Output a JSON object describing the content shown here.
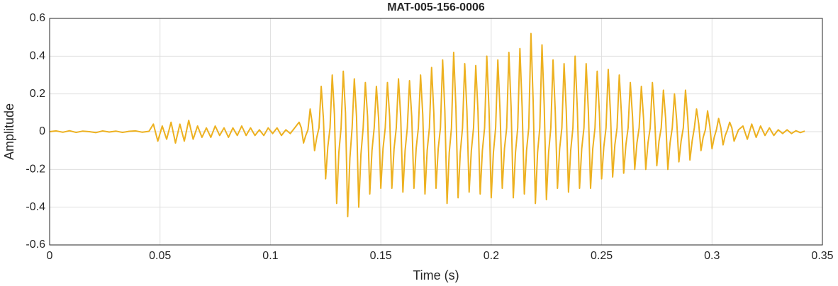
{
  "chart_data": {
    "type": "line",
    "title": "MAT-005-156-0006",
    "x_label": "Time (s)",
    "y_label": "Amplitude",
    "color": "#EDB120",
    "grid": true,
    "xlim": [
      0,
      0.35
    ],
    "ylim": [
      -0.6,
      0.6
    ],
    "xticks": [
      0,
      0.05,
      0.1,
      0.15,
      0.2,
      0.25,
      0.3,
      0.35
    ],
    "yticks": [
      -0.6,
      -0.4,
      -0.2,
      0,
      0.2,
      0.4,
      0.6
    ],
    "x": [
      0,
      0.003,
      0.006,
      0.009,
      0.012,
      0.015,
      0.018,
      0.021,
      0.024,
      0.027,
      0.03,
      0.033,
      0.036,
      0.039,
      0.042,
      0.045,
      0.047,
      0.049,
      0.051,
      0.053,
      0.055,
      0.057,
      0.059,
      0.061,
      0.063,
      0.065,
      0.067,
      0.069,
      0.071,
      0.073,
      0.075,
      0.077,
      0.079,
      0.081,
      0.083,
      0.085,
      0.087,
      0.089,
      0.091,
      0.093,
      0.095,
      0.097,
      0.099,
      0.101,
      0.103,
      0.105,
      0.107,
      0.109,
      0.111,
      0.113,
      0.114,
      0.115,
      0.116,
      0.117,
      0.118,
      0.119,
      0.12,
      0.121,
      0.122,
      0.123,
      0.124,
      0.125,
      0.126,
      0.127,
      0.128,
      0.129,
      0.13,
      0.131,
      0.132,
      0.133,
      0.134,
      0.135,
      0.136,
      0.137,
      0.138,
      0.139,
      0.14,
      0.141,
      0.142,
      0.143,
      0.144,
      0.145,
      0.146,
      0.147,
      0.148,
      0.149,
      0.15,
      0.151,
      0.152,
      0.153,
      0.154,
      0.155,
      0.156,
      0.157,
      0.158,
      0.159,
      0.16,
      0.161,
      0.162,
      0.163,
      0.164,
      0.165,
      0.166,
      0.167,
      0.168,
      0.169,
      0.17,
      0.171,
      0.172,
      0.173,
      0.174,
      0.175,
      0.176,
      0.177,
      0.178,
      0.179,
      0.18,
      0.181,
      0.182,
      0.183,
      0.184,
      0.185,
      0.186,
      0.187,
      0.188,
      0.189,
      0.19,
      0.191,
      0.192,
      0.193,
      0.194,
      0.195,
      0.196,
      0.197,
      0.198,
      0.199,
      0.2,
      0.201,
      0.202,
      0.203,
      0.204,
      0.205,
      0.206,
      0.207,
      0.208,
      0.209,
      0.21,
      0.211,
      0.212,
      0.213,
      0.214,
      0.215,
      0.216,
      0.217,
      0.218,
      0.219,
      0.22,
      0.221,
      0.222,
      0.223,
      0.224,
      0.225,
      0.226,
      0.227,
      0.228,
      0.229,
      0.23,
      0.231,
      0.232,
      0.233,
      0.234,
      0.235,
      0.236,
      0.237,
      0.238,
      0.239,
      0.24,
      0.241,
      0.242,
      0.243,
      0.244,
      0.245,
      0.246,
      0.247,
      0.248,
      0.249,
      0.25,
      0.251,
      0.252,
      0.253,
      0.254,
      0.255,
      0.256,
      0.257,
      0.258,
      0.259,
      0.26,
      0.261,
      0.262,
      0.263,
      0.264,
      0.265,
      0.266,
      0.267,
      0.268,
      0.269,
      0.27,
      0.271,
      0.272,
      0.273,
      0.274,
      0.275,
      0.276,
      0.277,
      0.278,
      0.279,
      0.28,
      0.281,
      0.282,
      0.283,
      0.284,
      0.285,
      0.286,
      0.287,
      0.288,
      0.289,
      0.29,
      0.291,
      0.292,
      0.293,
      0.294,
      0.295,
      0.296,
      0.297,
      0.298,
      0.299,
      0.3,
      0.301,
      0.302,
      0.303,
      0.304,
      0.305,
      0.306,
      0.307,
      0.308,
      0.309,
      0.31,
      0.311,
      0.312,
      0.314,
      0.316,
      0.318,
      0.32,
      0.322,
      0.324,
      0.326,
      0.328,
      0.33,
      0.332,
      0.334,
      0.336,
      0.338,
      0.34,
      0.342
    ],
    "values": [
      0,
      0.004,
      -0.003,
      0.005,
      -0.004,
      0.003,
      0,
      -0.005,
      0.004,
      -0.002,
      0.003,
      -0.004,
      0.002,
      0.004,
      -0.003,
      0.002,
      0.04,
      -0.05,
      0.03,
      -0.04,
      0.05,
      -0.06,
      0.04,
      -0.05,
      0.06,
      -0.04,
      0.03,
      -0.03,
      0.02,
      -0.03,
      0.03,
      -0.02,
      0.02,
      -0.03,
      0.02,
      -0.02,
      0.03,
      -0.02,
      0.02,
      -0.02,
      0.01,
      -0.02,
      0.02,
      -0.01,
      0.02,
      -0.02,
      0.01,
      -0.01,
      0.02,
      0.05,
      0.02,
      -0.06,
      -0.02,
      0.01,
      0.12,
      0.04,
      -0.1,
      -0.03,
      0.02,
      0.24,
      0.07,
      -0.25,
      -0.08,
      0.02,
      0.3,
      0.09,
      -0.38,
      -0.11,
      0.02,
      0.32,
      0.1,
      -0.45,
      -0.14,
      0.02,
      0.28,
      0.08,
      -0.4,
      -0.12,
      0.02,
      0.26,
      0.08,
      -0.33,
      -0.1,
      0.02,
      0.24,
      0.07,
      -0.3,
      -0.09,
      0.02,
      0.26,
      0.08,
      -0.3,
      -0.09,
      0.02,
      0.28,
      0.08,
      -0.32,
      -0.1,
      0.02,
      0.27,
      0.08,
      -0.3,
      -0.09,
      0.02,
      0.3,
      0.09,
      -0.33,
      -0.1,
      0.02,
      0.34,
      0.1,
      -0.3,
      -0.09,
      0.02,
      0.38,
      0.11,
      -0.38,
      -0.11,
      0.02,
      0.42,
      0.13,
      -0.35,
      -0.11,
      0.02,
      0.36,
      0.11,
      -0.32,
      -0.1,
      0.02,
      0.35,
      0.11,
      -0.33,
      -0.1,
      0.02,
      0.4,
      0.12,
      -0.35,
      -0.11,
      0.02,
      0.38,
      0.11,
      -0.3,
      -0.09,
      0.02,
      0.42,
      0.13,
      -0.35,
      -0.11,
      0.02,
      0.44,
      0.13,
      -0.33,
      -0.1,
      0.02,
      0.52,
      0.16,
      -0.38,
      -0.11,
      0.02,
      0.46,
      0.14,
      -0.36,
      -0.11,
      0.02,
      0.38,
      0.11,
      -0.3,
      -0.09,
      0.02,
      0.36,
      0.11,
      -0.32,
      -0.1,
      0.02,
      0.4,
      0.12,
      -0.3,
      -0.09,
      0.02,
      0.36,
      0.11,
      -0.3,
      -0.09,
      0.02,
      0.32,
      0.1,
      -0.25,
      -0.08,
      0.02,
      0.33,
      0.1,
      -0.24,
      -0.07,
      0.02,
      0.3,
      0.09,
      -0.22,
      -0.07,
      0.02,
      0.26,
      0.08,
      -0.2,
      -0.06,
      0.02,
      0.24,
      0.07,
      -0.2,
      -0.06,
      0.02,
      0.26,
      0.08,
      -0.18,
      -0.05,
      0.02,
      0.22,
      0.07,
      -0.2,
      -0.06,
      0.02,
      0.2,
      0.06,
      -0.16,
      -0.05,
      0.02,
      0.22,
      0.07,
      -0.15,
      -0.05,
      0.02,
      0.12,
      0.04,
      -0.1,
      -0.03,
      0.01,
      0.11,
      0.03,
      -0.09,
      -0.03,
      0.01,
      0.07,
      0.02,
      -0.07,
      -0.02,
      0.01,
      0.05,
      0.02,
      -0.05,
      -0.02,
      0.01,
      0.03,
      -0.04,
      0.04,
      -0.03,
      0.03,
      -0.02,
      0.02,
      -0.02,
      0.01,
      -0.01,
      0.01,
      -0.01,
      0.005,
      -0.005,
      0.003
    ]
  }
}
